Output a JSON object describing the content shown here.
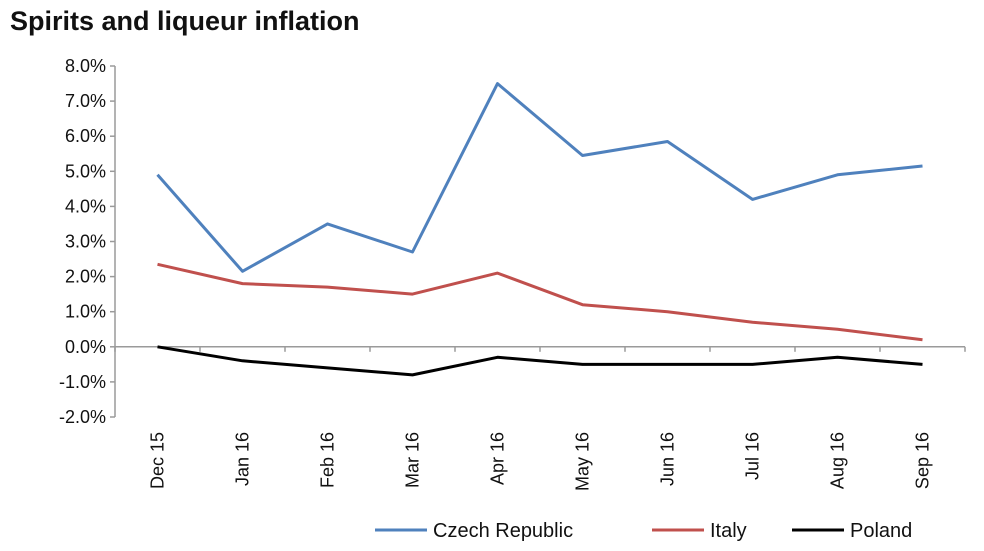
{
  "chart_data": {
    "type": "line",
    "title": "Spirits and liqueur inflation",
    "categories": [
      "Dec 15",
      "Jan 16",
      "Feb 16",
      "Mar 16",
      "Apr 16",
      "May 16",
      "Jun 16",
      "Jul 16",
      "Aug 16",
      "Sep 16"
    ],
    "series": [
      {
        "name": "Czech Republic",
        "color": "#4f81bd",
        "values": [
          4.9,
          2.15,
          3.5,
          2.7,
          7.5,
          5.45,
          5.85,
          4.2,
          4.9,
          5.15
        ]
      },
      {
        "name": "Italy",
        "color": "#c0504d",
        "values": [
          2.35,
          1.8,
          1.7,
          1.5,
          2.1,
          1.2,
          1.0,
          0.7,
          0.5,
          0.2
        ]
      },
      {
        "name": "Poland",
        "color": "#000000",
        "values": [
          0.0,
          -0.4,
          -0.6,
          -0.8,
          -0.3,
          -0.5,
          -0.5,
          -0.5,
          -0.3,
          -0.5
        ]
      }
    ],
    "ylim": [
      -2.0,
      8.0
    ],
    "yticks": [
      "8.0%",
      "7.0%",
      "6.0%",
      "5.0%",
      "4.0%",
      "3.0%",
      "2.0%",
      "1.0%",
      "0.0%",
      "-1.0%",
      "-2.0%"
    ],
    "ytick_values": [
      8,
      7,
      6,
      5,
      4,
      3,
      2,
      1,
      0,
      -1,
      -2
    ],
    "xlabel": "",
    "ylabel": "",
    "grid": false,
    "legend": "bottom-right"
  }
}
